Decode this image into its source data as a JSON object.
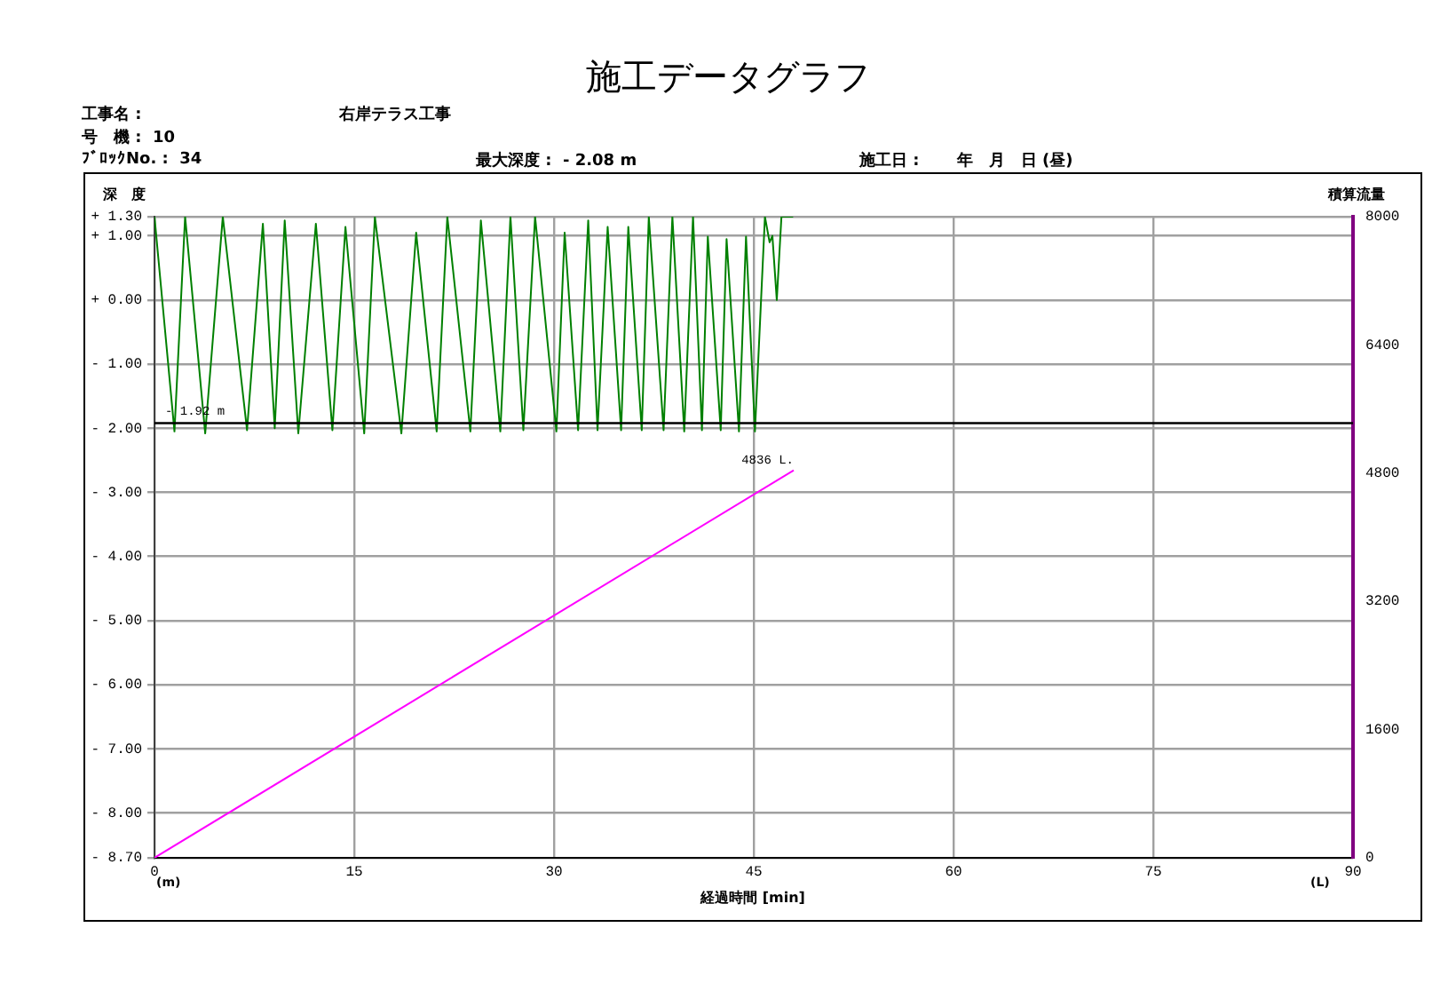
{
  "chart_data": {
    "type": "line",
    "title": "施工データグラフ",
    "xlabel": "経過時間 [min]",
    "ylabel": "深　度",
    "y2label": "積算流量",
    "annotations": [
      "工事名 :",
      "右岸テラス工事",
      "号　機 :  10",
      "ﾌﾞﾛｯｸNo. :  34",
      "最大深度 :  - 2.08 m",
      "施工日 :　　 年　月　日 (昼)",
      "(m)",
      "(L)"
    ],
    "xlim": [
      0,
      90
    ],
    "xticks": [
      0,
      15,
      30,
      45,
      60,
      75,
      90
    ],
    "ylim": [
      -8.7,
      1.3
    ],
    "yticks": [
      {
        "value": 1.3,
        "label": "+ 1.30"
      },
      {
        "value": 1,
        "label": "+ 1.00"
      },
      {
        "value": 0,
        "label": "+ 0.00"
      },
      {
        "value": -1,
        "label": "- 1.00"
      },
      {
        "value": -2,
        "label": "- 2.00"
      },
      {
        "value": -3,
        "label": "- 3.00"
      },
      {
        "value": -4,
        "label": "- 4.00"
      },
      {
        "value": -5,
        "label": "- 5.00"
      },
      {
        "value": -6,
        "label": "- 6.00"
      },
      {
        "value": -7,
        "label": "- 7.00"
      },
      {
        "value": -8,
        "label": "- 8.00"
      },
      {
        "value": -8.7,
        "label": "- 8.70"
      }
    ],
    "y2lim": [
      0,
      8000
    ],
    "y2ticks": [
      0,
      1600,
      3200,
      4800,
      6400,
      8000
    ],
    "grid": true,
    "marker": "none",
    "ref_lines": [
      {
        "axis": "y",
        "value": -1.92,
        "label": "- 1.92 m",
        "color": "#000000"
      }
    ],
    "series": [
      {
        "color": "#008000",
        "x": [
          0,
          1.5,
          2.3,
          3.81,
          5.13,
          6.95,
          8.14,
          9.03,
          9.78,
          10.8,
          12.12,
          13.36,
          14.34,
          15.75,
          16.55,
          18.54,
          19.65,
          21.19,
          21.99,
          23.72,
          24.51,
          25.97,
          26.73,
          27.7,
          28.58,
          30.18,
          30.8,
          31.81,
          32.57,
          33.27,
          34.03,
          35.04,
          35.58,
          36.59,
          37.12,
          38.23,
          38.89,
          39.78,
          40.44,
          41.11,
          41.55,
          42.52,
          42.96,
          43.89,
          44.42,
          45.09,
          45.84,
          46.19,
          46.4,
          46.73,
          47.08,
          47.96
        ],
        "values": [
          1.3,
          -2.05,
          1.3,
          -2.08,
          1.3,
          -2.03,
          1.19,
          -2.0,
          1.24,
          -2.08,
          1.19,
          -2.03,
          1.14,
          -2.08,
          1.3,
          -2.08,
          1.05,
          -2.05,
          1.3,
          -2.05,
          1.24,
          -2.05,
          1.3,
          -2.03,
          1.3,
          -2.05,
          1.05,
          -2.03,
          1.24,
          -2.03,
          1.14,
          -2.03,
          1.14,
          -2.03,
          1.3,
          -2.03,
          1.3,
          -2.05,
          1.3,
          -2.03,
          0.99,
          -2.03,
          0.95,
          -2.05,
          0.99,
          -2.05,
          1.3,
          0.9,
          1.0,
          0.0,
          1.3,
          1.3
        ]
      },
      {
        "color": "#ff00ff",
        "axis": "y2",
        "x": [
          0,
          48
        ],
        "values": [
          0,
          4836
        ],
        "value_labels": [
          null,
          "4836 L."
        ]
      }
    ]
  }
}
